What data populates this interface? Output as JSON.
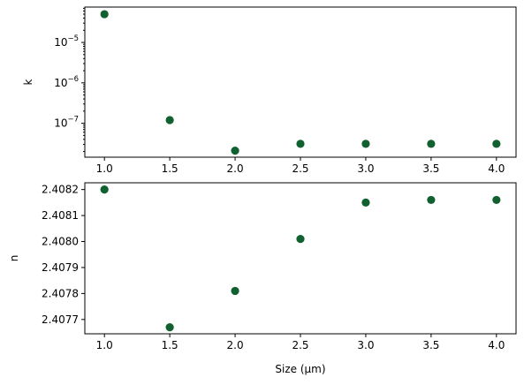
{
  "chart_data": [
    {
      "type": "scatter",
      "yscale": "log",
      "ylabel": "k",
      "xlabel": "",
      "x": [
        1.0,
        1.5,
        2.0,
        2.5,
        3.0,
        3.5,
        4.0
      ],
      "y": [
        5e-05,
        1.2e-07,
        2.1e-08,
        3.1e-08,
        3.1e-08,
        3.1e-08,
        3.1e-08
      ],
      "xlim": [
        0.85,
        4.15
      ],
      "ylim": [
        1.45e-08,
        7.5e-05
      ],
      "xticks": [
        1.0,
        1.5,
        2.0,
        2.5,
        3.0,
        3.5,
        4.0
      ],
      "xtick_labels": [
        "1.0",
        "1.5",
        "2.0",
        "2.5",
        "3.0",
        "3.5",
        "4.0"
      ],
      "yticks": [
        1e-07,
        1e-06,
        1e-05
      ],
      "ytick_labels": [
        {
          "base": "10",
          "exp": "−7"
        },
        {
          "base": "10",
          "exp": "−6"
        },
        {
          "base": "10",
          "exp": "−5"
        }
      ],
      "marker_color": "#11602f",
      "grid": false
    },
    {
      "type": "scatter",
      "yscale": "linear",
      "ylabel": "n",
      "xlabel": "Size (μm)",
      "x": [
        1.0,
        1.5,
        2.0,
        2.5,
        3.0,
        3.5,
        4.0
      ],
      "y": [
        2.4082,
        2.40767,
        2.40781,
        2.40801,
        2.40815,
        2.40816,
        2.40816
      ],
      "xlim": [
        0.85,
        4.15
      ],
      "ylim": [
        2.407645,
        2.408226
      ],
      "xticks": [
        1.0,
        1.5,
        2.0,
        2.5,
        3.0,
        3.5,
        4.0
      ],
      "xtick_labels": [
        "1.0",
        "1.5",
        "2.0",
        "2.5",
        "3.0",
        "3.5",
        "4.0"
      ],
      "yticks": [
        2.4077,
        2.4078,
        2.4079,
        2.408,
        2.4081,
        2.4082
      ],
      "ytick_labels": [
        "2.4077",
        "2.4078",
        "2.4079",
        "2.4080",
        "2.4081",
        "2.4082"
      ],
      "marker_color": "#11602f",
      "grid": false
    }
  ]
}
